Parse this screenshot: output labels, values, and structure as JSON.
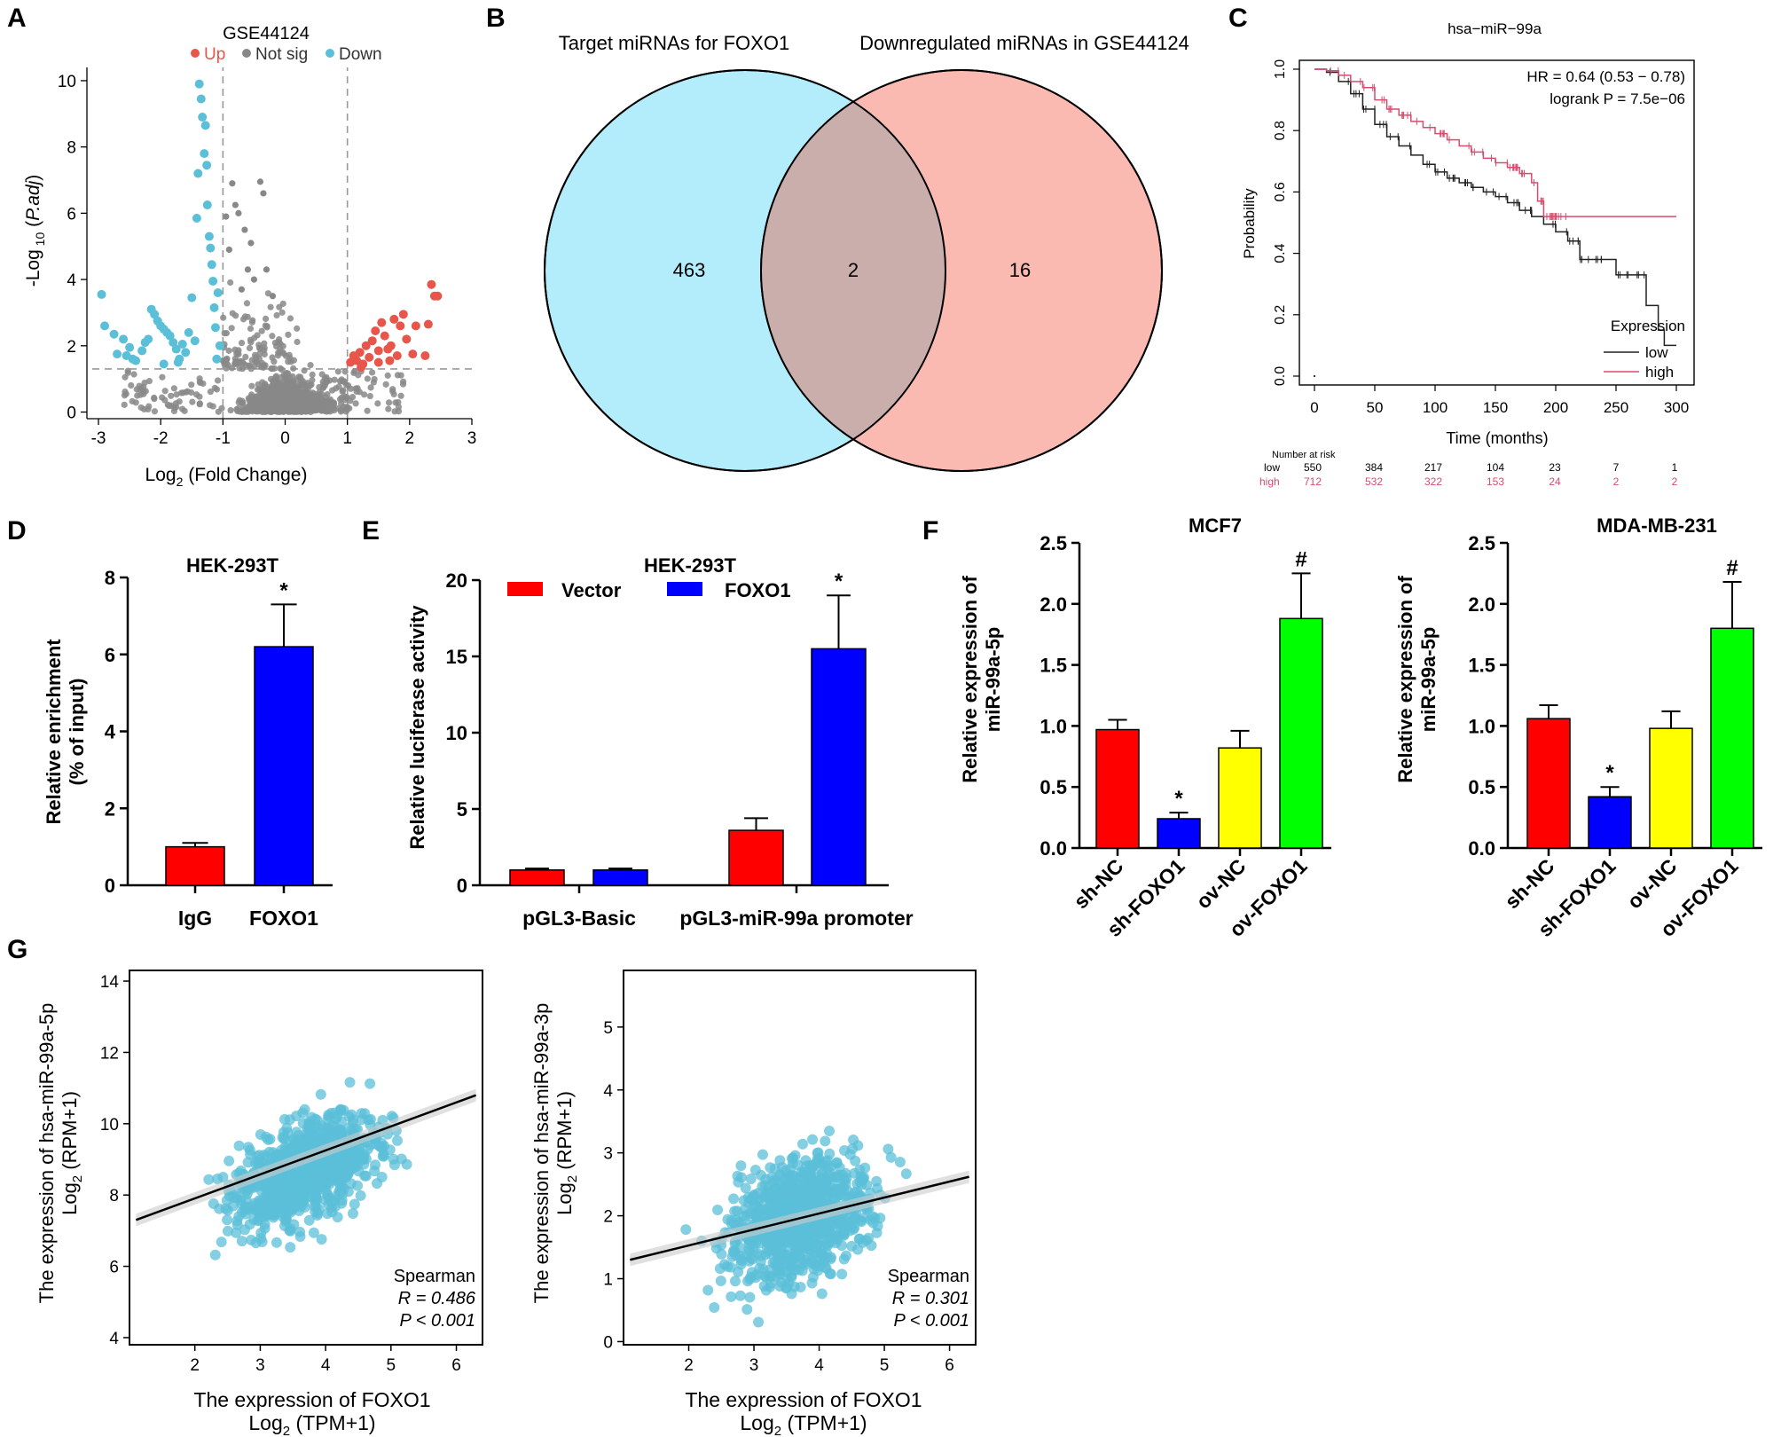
{
  "panels": {
    "A": {
      "letter": "A",
      "title": "GSE44124",
      "legend": [
        "Up",
        "Not sig",
        "Down"
      ],
      "legend_colors": [
        "#e8564b",
        "#888888",
        "#5bbfd8"
      ],
      "xlabel": "Log",
      "xlabel_sub": "2",
      "xlabel_rest": " (Fold Change)",
      "ylabel_pre": "-Log",
      "ylabel_sub": " 10",
      "ylabel_italic": "P.adj",
      "xticks": [
        "-3",
        "-2",
        "-1",
        "0",
        "1",
        "2",
        "3"
      ],
      "yticks": [
        "0",
        "2",
        "4",
        "6",
        "8",
        "10"
      ]
    },
    "B": {
      "letter": "B",
      "left_title": "Target miRNAs for FOXO1",
      "right_title": "Downregulated miRNAs in GSE44124",
      "left_only": "463",
      "overlap": "2",
      "right_only": "16",
      "left_color": "#b3ecfa",
      "right_color": "#fbbab1",
      "overlap_color": "#c9aeac"
    },
    "C": {
      "letter": "C",
      "title": "hsa−miR−99a",
      "hr": "HR = 0.64 (0.53 − 0.78)",
      "logrank": "logrank P = 7.5e−06",
      "ylabel": "Probability",
      "xlabel": "Time (months)",
      "legend_title": "Expression",
      "legend_low": "low",
      "legend_high": "high",
      "xticks": [
        "0",
        "50",
        "100",
        "150",
        "200",
        "250",
        "300"
      ],
      "yticks": [
        "0.0",
        "0.2",
        "0.4",
        "0.6",
        "0.8",
        "1.0"
      ],
      "risk_title": "Number at risk",
      "risk_low_label": "low",
      "risk_high_label": "high",
      "risk_low": [
        "550",
        "384",
        "217",
        "104",
        "23",
        "7",
        "1"
      ],
      "risk_high": [
        "712",
        "532",
        "322",
        "153",
        "24",
        "2",
        "2"
      ],
      "low_color": "#222222",
      "high_color": "#d64d6f"
    },
    "D": {
      "letter": "D",
      "title": "HEK-293T",
      "ylabel1": "Relative enrichment",
      "ylabel2": "(% of input)",
      "categories": [
        "IgG",
        "FOXO1"
      ],
      "yticks": [
        "0",
        "2",
        "4",
        "6",
        "8"
      ],
      "sig": "*"
    },
    "E": {
      "letter": "E",
      "title": "HEK-293T",
      "ylabel": "Relative luciferase activity",
      "legend": [
        "Vector",
        "FOXO1"
      ],
      "groups": [
        "pGL3-Basic",
        "pGL3-miR-99a promoter"
      ],
      "yticks": [
        "0",
        "5",
        "10",
        "15",
        "20"
      ],
      "sig": "*"
    },
    "F": {
      "letter": "F",
      "title_left": "MCF7",
      "title_right": "MDA-MB-231",
      "ylabel1": "Relative expression of",
      "ylabel2": "miR-99a-5p",
      "categories": [
        "sh-NC",
        "sh-FOXO1",
        "ov-NC",
        "ov-FOXO1"
      ],
      "yticks": [
        "0.0",
        "0.5",
        "1.0",
        "1.5",
        "2.0",
        "2.5"
      ],
      "sig_star": "*",
      "sig_hash": "#"
    },
    "G": {
      "letter": "G",
      "left_ylabel1": "The expression of hsa-miR-99a-5p",
      "right_ylabel1": "The expression of hsa-miR-99a-3p",
      "ylabel2_pre": "Log",
      "ylabel2_sub": "2",
      "ylabel2_rest": " (RPM+1)",
      "xlabel1": "The expression of FOXO1",
      "xlabel2_pre": "Log",
      "xlabel2_sub": "2",
      "xlabel2_rest": " (TPM+1)",
      "stat_method": "Spearman",
      "left_r": "R = 0.486",
      "left_p": "P < 0.001",
      "right_r": "R = 0.301",
      "right_p": "P < 0.001",
      "left_xticks": [
        "2",
        "3",
        "4",
        "5",
        "6"
      ],
      "left_yticks": [
        "4",
        "6",
        "8",
        "10",
        "12",
        "14"
      ],
      "right_xticks": [
        "2",
        "3",
        "4",
        "5",
        "6"
      ],
      "right_yticks": [
        "0",
        "1",
        "2",
        "3",
        "4",
        "5"
      ]
    }
  },
  "colors": {
    "red": "#ff0000",
    "blue": "#0000ff",
    "yellow": "#ffff00",
    "green": "#00ff00",
    "scatter": "#5bbfd8"
  },
  "chart_data": [
    {
      "panel": "A",
      "type": "scatter",
      "title": "GSE44124",
      "xlabel": "Log2 (Fold Change)",
      "ylabel": "-Log10 (P.adj)",
      "xlim": [
        -3.1,
        3.0
      ],
      "ylim": [
        -0.2,
        10.4
      ],
      "fc_threshold": [
        -1,
        1
      ],
      "padj_threshold": 1.3,
      "series": [
        {
          "name": "Down",
          "points": [
            [
              -2.95,
              3.55
            ],
            [
              -2.9,
              2.6
            ],
            [
              -2.75,
              2.35
            ],
            [
              -2.6,
              2.2
            ],
            [
              -2.5,
              1.95
            ],
            [
              -2.45,
              1.6
            ],
            [
              -2.3,
              1.85
            ],
            [
              -2.25,
              2.1
            ],
            [
              -2.2,
              2.2
            ],
            [
              -2.15,
              3.1
            ],
            [
              -2.1,
              2.95
            ],
            [
              -2.05,
              2.75
            ],
            [
              -2.0,
              2.6
            ],
            [
              -1.95,
              2.5
            ],
            [
              -1.9,
              2.4
            ],
            [
              -1.85,
              2.3
            ],
            [
              -1.8,
              2.1
            ],
            [
              -1.75,
              1.9
            ],
            [
              -1.7,
              1.6
            ],
            [
              -1.65,
              2.05
            ],
            [
              -1.6,
              1.8
            ],
            [
              -1.55,
              2.4
            ],
            [
              -1.5,
              3.45
            ],
            [
              -1.45,
              2.15
            ],
            [
              -1.42,
              5.85
            ],
            [
              -1.4,
              7.2
            ],
            [
              -1.38,
              9.9
            ],
            [
              -1.35,
              9.45
            ],
            [
              -1.33,
              8.9
            ],
            [
              -1.3,
              7.8
            ],
            [
              -1.28,
              8.65
            ],
            [
              -1.26,
              7.45
            ],
            [
              -1.25,
              6.25
            ],
            [
              -1.22,
              5.3
            ],
            [
              -1.2,
              4.95
            ],
            [
              -1.18,
              4.45
            ],
            [
              -1.16,
              3.95
            ],
            [
              -1.14,
              3.15
            ],
            [
              -1.12,
              2.55
            ],
            [
              -1.1,
              1.6
            ],
            [
              -1.08,
              3.6
            ],
            [
              -1.05,
              2.0
            ],
            [
              -2.7,
              1.75
            ],
            [
              -2.4,
              1.55
            ],
            [
              -2.55,
              1.7
            ],
            [
              -1.95,
              1.45
            ],
            [
              -1.72,
              1.5
            ]
          ]
        },
        {
          "name": "Up",
          "points": [
            [
              1.05,
              1.5
            ],
            [
              1.1,
              1.7
            ],
            [
              1.15,
              1.55
            ],
            [
              1.2,
              1.8
            ],
            [
              1.25,
              1.45
            ],
            [
              1.3,
              2.0
            ],
            [
              1.35,
              1.65
            ],
            [
              1.4,
              2.15
            ],
            [
              1.45,
              2.45
            ],
            [
              1.5,
              1.5
            ],
            [
              1.55,
              2.7
            ],
            [
              1.6,
              2.3
            ],
            [
              1.65,
              1.9
            ],
            [
              1.7,
              2.0
            ],
            [
              1.75,
              2.8
            ],
            [
              1.8,
              1.7
            ],
            [
              1.85,
              2.6
            ],
            [
              1.9,
              2.95
            ],
            [
              1.95,
              2.2
            ],
            [
              2.05,
              1.75
            ],
            [
              2.1,
              2.6
            ],
            [
              2.25,
              1.7
            ],
            [
              2.3,
              2.65
            ],
            [
              2.35,
              3.85
            ],
            [
              2.45,
              3.5
            ],
            [
              2.4,
              3.5
            ],
            [
              1.22,
              1.35
            ],
            [
              1.5,
              1.85
            ],
            [
              1.68,
              1.55
            ]
          ]
        },
        {
          "name": "Not sig",
          "note": "dense cloud near x∈[-1,1], y<2 plus grey points above threshold"
        }
      ]
    },
    {
      "panel": "B",
      "type": "venn",
      "sets": [
        "Target miRNAs for FOXO1",
        "Downregulated miRNAs in GSE44124"
      ],
      "values": {
        "left_only": 463,
        "overlap": 2,
        "right_only": 16
      }
    },
    {
      "panel": "C",
      "type": "line",
      "title": "hsa−miR−99a",
      "xlabel": "Time (months)",
      "ylabel": "Probability",
      "xlim": [
        0,
        300
      ],
      "ylim": [
        0,
        1
      ],
      "series": [
        {
          "name": "low",
          "x": [
            0,
            5,
            10,
            20,
            30,
            40,
            50,
            60,
            70,
            80,
            90,
            100,
            110,
            120,
            130,
            140,
            150,
            160,
            170,
            180,
            190,
            200,
            210,
            220,
            230,
            240,
            250,
            260,
            270,
            275,
            280,
            285,
            290,
            300
          ],
          "y": [
            1.0,
            1.0,
            0.99,
            0.96,
            0.92,
            0.87,
            0.82,
            0.78,
            0.75,
            0.72,
            0.69,
            0.665,
            0.645,
            0.63,
            0.615,
            0.6,
            0.585,
            0.565,
            0.54,
            0.52,
            0.495,
            0.47,
            0.44,
            0.38,
            0.38,
            0.38,
            0.33,
            0.33,
            0.33,
            0.23,
            0.23,
            0.15,
            0.1,
            0.1
          ]
        },
        {
          "name": "high",
          "x": [
            0,
            5,
            10,
            20,
            30,
            40,
            50,
            60,
            70,
            80,
            90,
            100,
            110,
            120,
            130,
            140,
            150,
            160,
            170,
            180,
            185,
            190,
            200,
            210,
            220,
            250,
            280,
            300
          ],
          "y": [
            1.0,
            1.0,
            0.995,
            0.98,
            0.96,
            0.94,
            0.9,
            0.87,
            0.85,
            0.83,
            0.81,
            0.79,
            0.77,
            0.75,
            0.73,
            0.71,
            0.695,
            0.68,
            0.66,
            0.63,
            0.57,
            0.52,
            0.52,
            0.52,
            0.52,
            0.52,
            0.52,
            0.52
          ]
        }
      ]
    },
    {
      "panel": "D",
      "type": "bar",
      "title": "HEK-293T",
      "categories": [
        "IgG",
        "FOXO1"
      ],
      "values": [
        1.0,
        6.2
      ],
      "errors": [
        0.1,
        1.1
      ],
      "ylim": [
        0,
        8
      ],
      "ylabel": "Relative enrichment (% of input)"
    },
    {
      "panel": "E",
      "type": "bar",
      "title": "HEK-293T",
      "categories": [
        "pGL3-Basic",
        "pGL3-miR-99a promoter"
      ],
      "series": [
        {
          "name": "Vector",
          "values": [
            1.0,
            3.6
          ],
          "errors": [
            0.1,
            0.8
          ]
        },
        {
          "name": "FOXO1",
          "values": [
            1.0,
            15.5
          ],
          "errors": [
            0.1,
            3.5
          ]
        }
      ],
      "ylim": [
        0,
        20
      ],
      "ylabel": "Relative luciferase activity"
    },
    {
      "panel": "F-left",
      "type": "bar",
      "title": "MCF7",
      "categories": [
        "sh-NC",
        "sh-FOXO1",
        "ov-NC",
        "ov-FOXO1"
      ],
      "values": [
        0.97,
        0.24,
        0.82,
        1.88
      ],
      "errors": [
        0.08,
        0.05,
        0.14,
        0.37
      ],
      "ylim": [
        0,
        2.5
      ],
      "ylabel": "Relative expression of miR-99a-5p"
    },
    {
      "panel": "F-right",
      "type": "bar",
      "title": "MDA-MB-231",
      "categories": [
        "sh-NC",
        "sh-FOXO1",
        "ov-NC",
        "ov-FOXO1"
      ],
      "values": [
        1.06,
        0.42,
        0.98,
        1.8
      ],
      "errors": [
        0.11,
        0.08,
        0.14,
        0.38
      ],
      "ylim": [
        0,
        2.5
      ],
      "ylabel": "Relative expression of miR-99a-5p"
    },
    {
      "panel": "G-left",
      "type": "scatter",
      "xlabel": "The expression of FOXO1 Log2 (TPM+1)",
      "ylabel": "The expression of hsa-miR-99a-5p Log2 (RPM+1)",
      "xlim": [
        1.0,
        6.4
      ],
      "ylim": [
        3.8,
        14.3
      ],
      "fit": {
        "x": [
          1.1,
          6.3
        ],
        "y": [
          7.3,
          10.8
        ]
      },
      "spearman_r": 0.486,
      "p": "< 0.001"
    },
    {
      "panel": "G-right",
      "type": "scatter",
      "xlabel": "The expression of FOXO1 Log2 (TPM+1)",
      "ylabel": "The expression of hsa-miR-99a-3p Log2 (RPM+1)",
      "xlim": [
        1.0,
        6.4
      ],
      "ylim": [
        -0.05,
        5.9
      ],
      "fit": {
        "x": [
          1.1,
          6.3
        ],
        "y": [
          1.3,
          2.62
        ]
      },
      "spearman_r": 0.301,
      "p": "< 0.001"
    }
  ]
}
